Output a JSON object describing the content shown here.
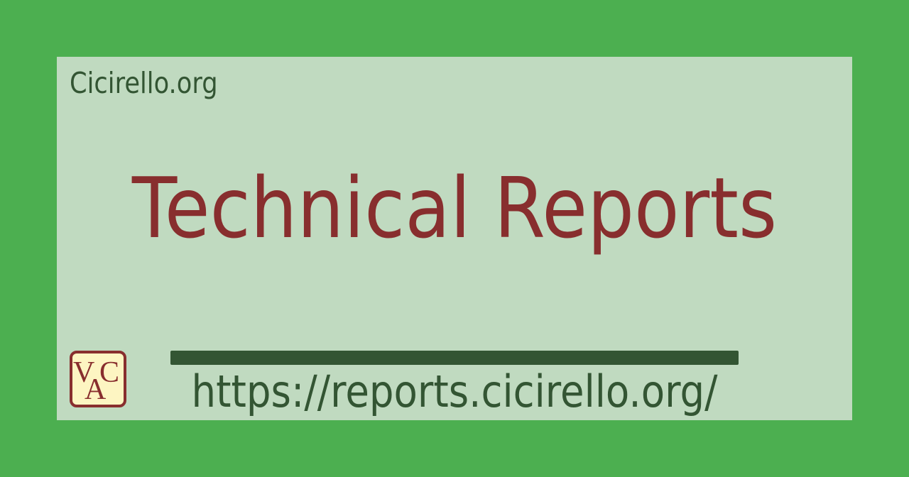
{
  "site": {
    "name": "Cicirello.org"
  },
  "page": {
    "title": "Technical Reports",
    "url": "https://reports.cicirello.org/"
  },
  "logo": {
    "icon": "vac-monogram-logo",
    "letters": [
      "V",
      "A",
      "C"
    ]
  },
  "colors": {
    "outer_background": "#4caf50",
    "card_background": "#c0dac0",
    "title": "#882e2e",
    "text": "#335533",
    "logo_fill": "#fdf5c2",
    "logo_border": "#882e2e"
  }
}
